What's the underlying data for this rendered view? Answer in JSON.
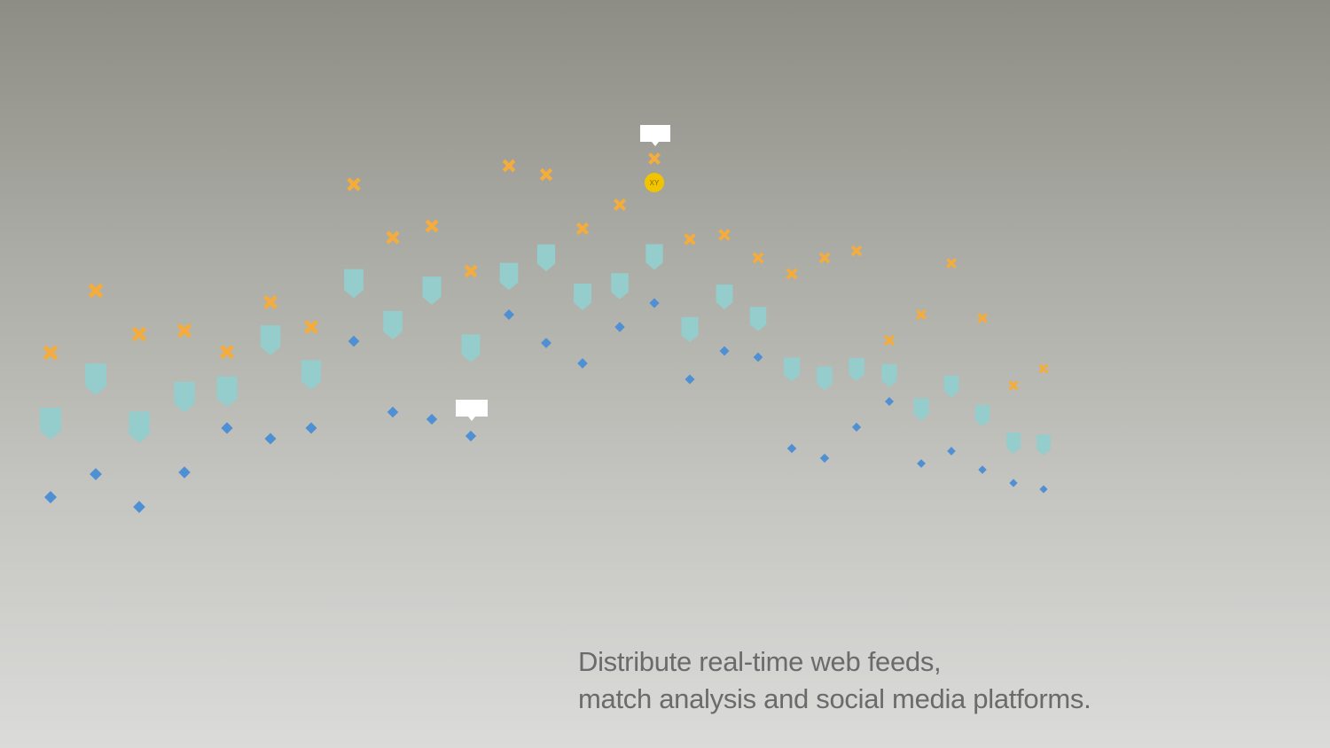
{
  "caption": {
    "lines": [
      "Distribute real-time web feeds,",
      "match analysis and social media platforms."
    ]
  },
  "highlight_badge": "XY"
}
